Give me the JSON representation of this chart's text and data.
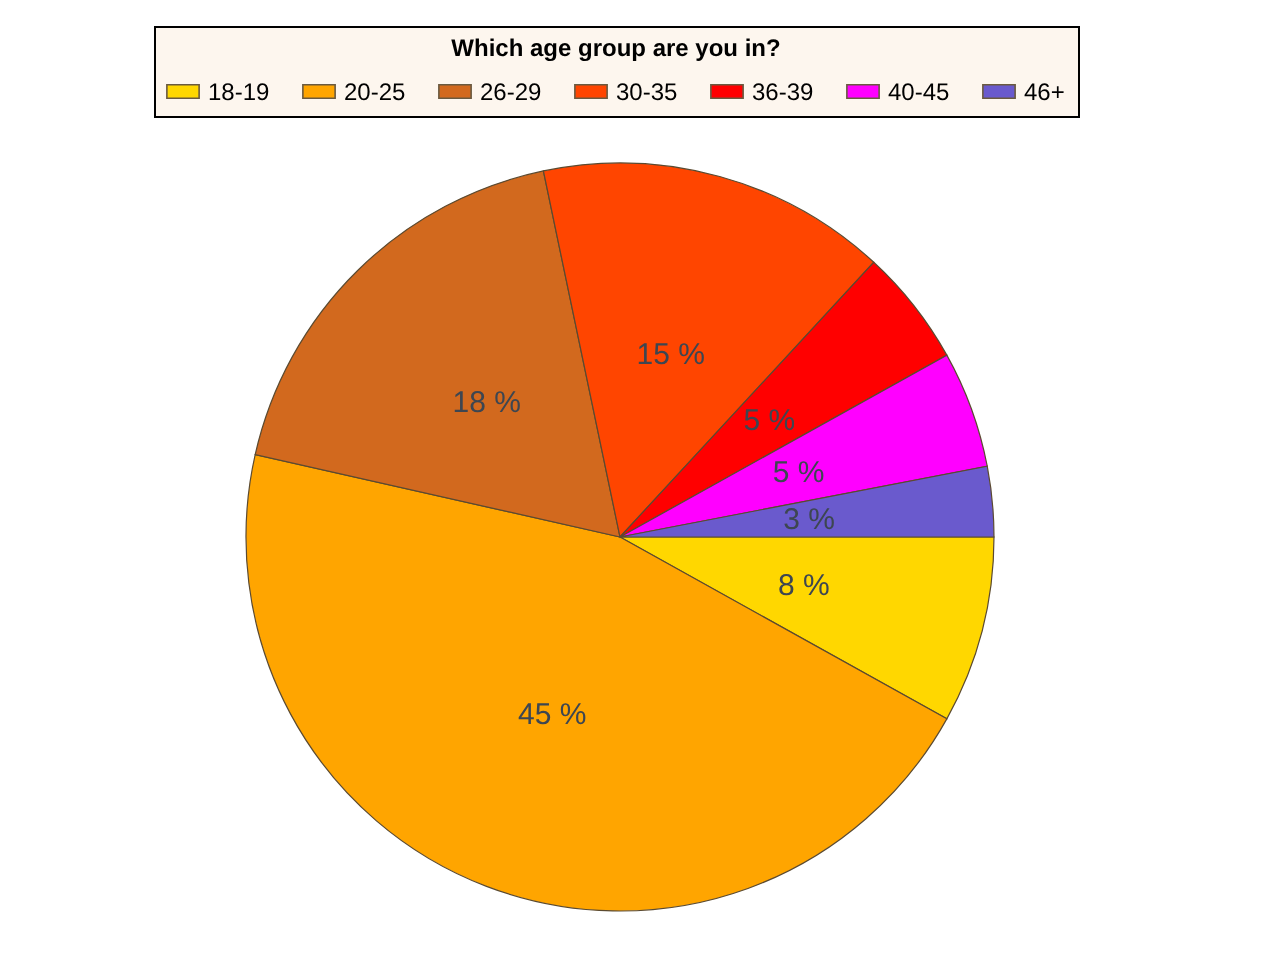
{
  "chart_data": {
    "type": "pie",
    "legend_title": "Which age group are you in?",
    "legend": "top",
    "categories": [
      "18-19",
      "20-25",
      "26-29",
      "30-35",
      "36-39",
      "40-45",
      "46+"
    ],
    "values": [
      8,
      45,
      18,
      15,
      5,
      5,
      3
    ],
    "colors": [
      "#ffd700",
      "#ffa500",
      "#d2691e",
      "#ff4500",
      "#ff0000",
      "#ff00ff",
      "#6a5acd"
    ],
    "value_labels": [
      "8 %",
      "45 %",
      "18 %",
      "15 %",
      "5 %",
      "5 %",
      "3 %"
    ]
  }
}
